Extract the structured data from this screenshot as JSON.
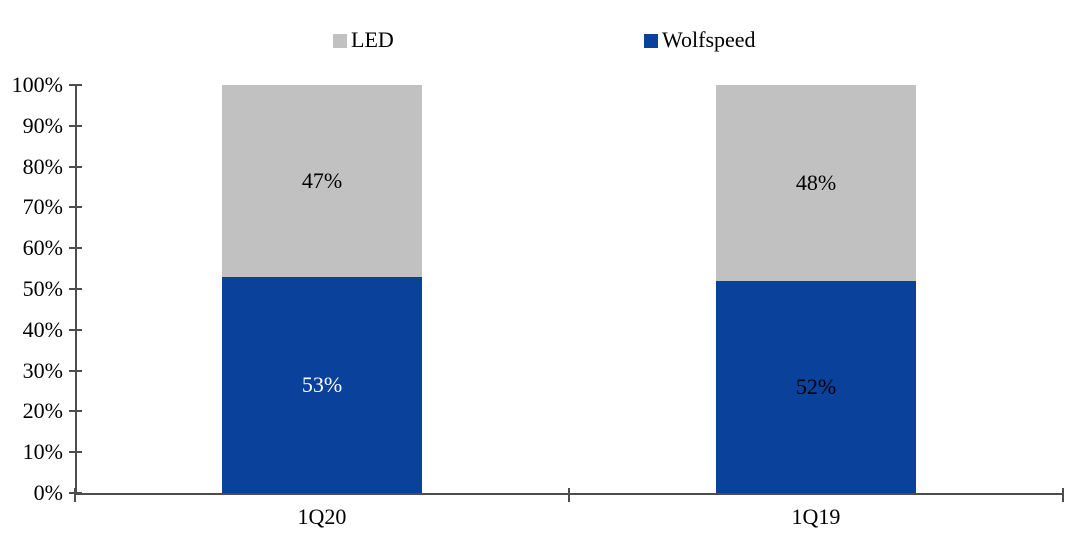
{
  "chart_data": {
    "type": "bar",
    "variant": "100-percent-stacked-column",
    "categories": [
      "1Q20",
      "1Q19"
    ],
    "series": [
      {
        "name": "Wolfspeed",
        "color": "#0A429B",
        "values": [
          53,
          52
        ],
        "data_labels": [
          "53%",
          "52%"
        ],
        "data_label_colors": [
          "#FFFFFF",
          "#000000"
        ]
      },
      {
        "name": "LED",
        "color": "#C1C1C1",
        "values": [
          47,
          48
        ],
        "data_labels": [
          "47%",
          "48%"
        ],
        "data_label_colors": [
          "#000000",
          "#000000"
        ]
      }
    ],
    "y_axis": {
      "min": 0,
      "max": 100,
      "step": 10,
      "tick_labels": [
        "0%",
        "10%",
        "20%",
        "30%",
        "40%",
        "50%",
        "60%",
        "70%",
        "80%",
        "90%",
        "100%"
      ]
    },
    "legend": {
      "position": "top",
      "items": [
        {
          "label": "LED",
          "color": "#C1C1C1"
        },
        {
          "label": "Wolfspeed",
          "color": "#0A429B"
        }
      ]
    },
    "grid": false,
    "colors": {
      "axis": "#4D4D4D",
      "background": "#FFFFFF",
      "text": "#000000"
    }
  }
}
